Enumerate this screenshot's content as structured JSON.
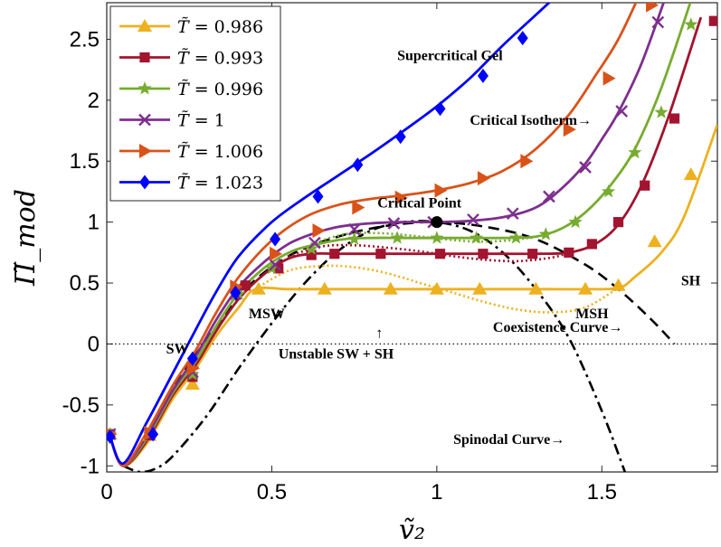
{
  "chart_data": {
    "type": "line",
    "xlabel": "ṽ₂",
    "ylabel": "Π̃_mod",
    "xlim": [
      0,
      1.85
    ],
    "ylim": [
      -1.05,
      2.8
    ],
    "xticks": [
      0,
      0.5,
      1,
      1.5
    ],
    "xtick_labels": [
      "0",
      "0.5",
      "1",
      "1.5"
    ],
    "yticks": [
      -1,
      -0.5,
      0,
      0.5,
      1,
      1.5,
      2,
      2.5
    ],
    "ytick_labels": [
      "-1",
      "-0.5",
      "0",
      "0.5",
      "1",
      "1.5",
      "2",
      "2.5"
    ],
    "grid": false,
    "legend_position": "top-left",
    "series": [
      {
        "name": "T̃ = 0.986",
        "legend_prefix": "T̃",
        "legend_value": "= 0.986",
        "color": "#EDB120",
        "marker": "triangle",
        "x": [
          0.01,
          0.05,
          0.12,
          0.2,
          0.27,
          0.33,
          0.4,
          0.45,
          0.55,
          0.65,
          0.75,
          0.85,
          0.95,
          1.05,
          1.15,
          1.25,
          1.35,
          1.45,
          1.55,
          1.6,
          1.68,
          1.75,
          1.85
        ],
        "y": [
          -0.76,
          -1.0,
          -0.82,
          -0.45,
          -0.2,
          0.06,
          0.3,
          0.45,
          0.45,
          0.45,
          0.45,
          0.45,
          0.45,
          0.45,
          0.45,
          0.45,
          0.45,
          0.45,
          0.46,
          0.55,
          0.75,
          1.05,
          1.8
        ],
        "markers_x": [
          0.01,
          0.13,
          0.26,
          0.46,
          0.66,
          0.86,
          1.0,
          1.13,
          1.3,
          1.45,
          1.55,
          1.66,
          1.77
        ],
        "markers_y": [
          -0.74,
          -0.75,
          -0.33,
          0.45,
          0.45,
          0.45,
          0.45,
          0.45,
          0.45,
          0.45,
          0.48,
          0.84,
          1.39
        ]
      },
      {
        "name": "T̃ = 0.993",
        "legend_prefix": "T̃",
        "legend_value": "= 0.993",
        "color": "#A2142F",
        "marker": "square",
        "x": [
          0.01,
          0.05,
          0.12,
          0.2,
          0.27,
          0.33,
          0.4,
          0.48,
          0.55,
          0.62,
          0.7,
          0.8,
          0.9,
          1.0,
          1.1,
          1.2,
          1.3,
          1.4,
          1.48,
          1.55,
          1.62,
          1.7,
          1.8
        ],
        "y": [
          -0.76,
          -1.0,
          -0.8,
          -0.42,
          -0.17,
          0.1,
          0.37,
          0.58,
          0.7,
          0.74,
          0.74,
          0.74,
          0.74,
          0.74,
          0.74,
          0.74,
          0.74,
          0.75,
          0.82,
          0.98,
          1.3,
          1.85,
          2.68
        ],
        "markers_x": [
          0.01,
          0.13,
          0.26,
          0.42,
          0.52,
          0.62,
          0.69,
          0.83,
          1.01,
          1.14,
          1.29,
          1.4,
          1.47,
          1.55,
          1.63,
          1.72,
          1.84
        ],
        "markers_y": [
          -0.74,
          -0.75,
          -0.27,
          0.48,
          0.62,
          0.73,
          0.74,
          0.74,
          0.74,
          0.74,
          0.74,
          0.75,
          0.82,
          1.0,
          1.3,
          1.85,
          2.65
        ]
      },
      {
        "name": "T̃ = 0.996",
        "legend_prefix": "T̃",
        "legend_value": "= 0.996",
        "color": "#77AC30",
        "marker": "star",
        "x": [
          0.01,
          0.05,
          0.12,
          0.2,
          0.27,
          0.33,
          0.4,
          0.48,
          0.56,
          0.64,
          0.72,
          0.8,
          0.9,
          1.0,
          1.1,
          1.2,
          1.3,
          1.38,
          1.45,
          1.52,
          1.6,
          1.68,
          1.78
        ],
        "y": [
          -0.76,
          -1.0,
          -0.78,
          -0.4,
          -0.14,
          0.14,
          0.42,
          0.63,
          0.76,
          0.82,
          0.86,
          0.87,
          0.87,
          0.87,
          0.87,
          0.87,
          0.88,
          0.95,
          1.08,
          1.28,
          1.6,
          2.1,
          2.9
        ],
        "markers_x": [
          0.01,
          0.13,
          0.26,
          0.4,
          0.5,
          0.62,
          0.75,
          0.88,
          1.0,
          1.12,
          1.24,
          1.33,
          1.42,
          1.52,
          1.6,
          1.68,
          1.77
        ],
        "markers_y": [
          -0.74,
          -0.74,
          -0.25,
          0.41,
          0.62,
          0.78,
          0.86,
          0.87,
          0.87,
          0.87,
          0.87,
          0.9,
          1.0,
          1.25,
          1.57,
          1.9,
          2.62
        ]
      },
      {
        "name": "T̃ = 1",
        "legend_prefix": "T̃",
        "legend_value": "= 1",
        "color": "#7E2F8E",
        "marker": "x",
        "x": [
          0.01,
          0.05,
          0.12,
          0.2,
          0.27,
          0.33,
          0.4,
          0.48,
          0.55,
          0.62,
          0.7,
          0.8,
          0.9,
          1.0,
          1.1,
          1.2,
          1.3,
          1.38,
          1.45,
          1.5,
          1.55,
          1.62,
          1.7
        ],
        "y": [
          -0.76,
          -1.0,
          -0.76,
          -0.38,
          -0.1,
          0.19,
          0.47,
          0.68,
          0.82,
          0.9,
          0.96,
          0.99,
          1.0,
          1.0,
          1.01,
          1.04,
          1.12,
          1.28,
          1.48,
          1.68,
          1.9,
          2.3,
          2.9
        ],
        "markers_x": [
          0.01,
          0.13,
          0.26,
          0.39,
          0.51,
          0.63,
          0.75,
          0.87,
          0.99,
          1.11,
          1.23,
          1.34,
          1.45,
          1.56,
          1.67
        ],
        "markers_y": [
          -0.74,
          -0.73,
          -0.23,
          0.41,
          0.65,
          0.83,
          0.94,
          0.99,
          1.0,
          1.02,
          1.07,
          1.21,
          1.45,
          1.91,
          2.64
        ]
      },
      {
        "name": "T̃ = 1.006",
        "legend_prefix": "T̃",
        "legend_value": "= 1.006",
        "color": "#D95319",
        "marker": "triangle-right",
        "x": [
          0.01,
          0.05,
          0.12,
          0.2,
          0.27,
          0.33,
          0.4,
          0.5,
          0.6,
          0.7,
          0.8,
          0.9,
          1.0,
          1.1,
          1.2,
          1.3,
          1.4,
          1.48,
          1.55,
          1.62
        ],
        "y": [
          -0.76,
          -1.0,
          -0.73,
          -0.34,
          -0.05,
          0.25,
          0.55,
          0.85,
          1.04,
          1.14,
          1.19,
          1.22,
          1.26,
          1.32,
          1.42,
          1.6,
          1.88,
          2.2,
          2.5,
          2.9
        ],
        "markers_x": [
          0.01,
          0.13,
          0.26,
          0.39,
          0.51,
          0.64,
          0.76,
          0.89,
          1.01,
          1.14,
          1.27,
          1.4,
          1.52,
          1.65
        ],
        "markers_y": [
          -0.74,
          -0.73,
          -0.2,
          0.47,
          0.74,
          0.93,
          1.12,
          1.2,
          1.26,
          1.36,
          1.5,
          1.76,
          2.18,
          2.78
        ]
      },
      {
        "name": "T̃ = 1.023",
        "legend_prefix": "T̃",
        "legend_value": "= 1.023",
        "color": "#0000FF",
        "marker": "diamond",
        "x": [
          0.01,
          0.05,
          0.12,
          0.2,
          0.27,
          0.33,
          0.4,
          0.5,
          0.6,
          0.7,
          0.8,
          0.9,
          1.0,
          1.1,
          1.2,
          1.3,
          1.38,
          1.44
        ],
        "y": [
          -0.76,
          -0.98,
          -0.65,
          -0.24,
          0.12,
          0.42,
          0.72,
          1.0,
          1.2,
          1.38,
          1.56,
          1.75,
          1.95,
          2.18,
          2.45,
          2.7,
          2.9,
          3.05
        ],
        "markers_x": [
          0.01,
          0.14,
          0.26,
          0.39,
          0.51,
          0.64,
          0.76,
          0.89,
          1.01,
          1.14,
          1.26
        ],
        "markers_y": [
          -0.76,
          -0.74,
          -0.12,
          0.42,
          0.86,
          1.21,
          1.47,
          1.7,
          1.93,
          2.2,
          2.51
        ]
      }
    ],
    "extra_curves": [
      {
        "name": "coexistence-curve",
        "style": "dashed",
        "color": "#000000",
        "x": [
          0.18,
          0.24,
          0.32,
          0.42,
          0.55,
          0.7,
          0.85,
          1.0,
          1.15,
          1.3,
          1.45,
          1.55,
          1.65,
          1.72
        ],
        "y": [
          -0.45,
          -0.2,
          0.1,
          0.45,
          0.72,
          0.88,
          0.97,
          1.0,
          0.96,
          0.86,
          0.65,
          0.45,
          0.2,
          0.0
        ]
      },
      {
        "name": "spinodal-curve",
        "style": "dashdot",
        "color": "#000000",
        "x": [
          0.05,
          0.1,
          0.15,
          0.2,
          0.3,
          0.4,
          0.5,
          0.6,
          0.7,
          0.8,
          0.9,
          1.0,
          1.1,
          1.2,
          1.3,
          1.4,
          1.5,
          1.57
        ],
        "y": [
          -1.0,
          -1.05,
          -1.02,
          -0.92,
          -0.6,
          -0.2,
          0.17,
          0.5,
          0.76,
          0.93,
          1.0,
          1.0,
          0.93,
          0.75,
          0.45,
          0.05,
          -0.55,
          -1.05
        ]
      },
      {
        "name": "metastable-dotted-0986",
        "style": "dotted",
        "color": "#EDB120",
        "x": [
          0.45,
          0.55,
          0.65,
          0.75,
          0.85,
          0.95,
          1.05,
          1.15,
          1.25,
          1.35,
          1.45,
          1.55
        ],
        "y": [
          0.45,
          0.6,
          0.64,
          0.63,
          0.58,
          0.5,
          0.42,
          0.34,
          0.28,
          0.26,
          0.3,
          0.46
        ]
      },
      {
        "name": "metastable-dotted-0993",
        "style": "dotted",
        "color": "#A2142F",
        "x": [
          0.55,
          0.65,
          0.75,
          0.85,
          0.95,
          1.05,
          1.15,
          1.25,
          1.35,
          1.4
        ],
        "y": [
          0.72,
          0.8,
          0.81,
          0.79,
          0.76,
          0.72,
          0.69,
          0.68,
          0.71,
          0.75
        ]
      },
      {
        "name": "metastable-dotted-0996",
        "style": "dotted",
        "color": "#77AC30",
        "x": [
          0.62,
          0.72,
          0.82,
          0.92,
          1.02,
          1.12,
          1.22,
          1.3
        ],
        "y": [
          0.82,
          0.9,
          0.91,
          0.89,
          0.86,
          0.84,
          0.85,
          0.88
        ]
      }
    ],
    "critical_point": {
      "x": 1.0,
      "y": 1.0,
      "label": "Critical Point"
    },
    "zero_line": {
      "y": 0,
      "style": "dotted"
    },
    "annotations": [
      {
        "text": "Supercritical Gel",
        "x": 0.88,
        "y": 2.33
      },
      {
        "text": "Critical Isotherm→",
        "x": 1.1,
        "y": 1.8
      },
      {
        "text": "Critical Point",
        "x": 0.82,
        "y": 1.12
      },
      {
        "text": "SH",
        "x": 1.74,
        "y": 0.48
      },
      {
        "text": "MSH",
        "x": 1.42,
        "y": 0.21
      },
      {
        "text": "Coexistence Curve→",
        "x": 1.17,
        "y": 0.1
      },
      {
        "text": "MSW",
        "x": 0.43,
        "y": 0.21
      },
      {
        "text": "SW",
        "x": 0.18,
        "y": -0.08
      },
      {
        "text": "↑",
        "x": 0.815,
        "y": 0.05
      },
      {
        "text": "Unstable SW + SH",
        "x": 0.52,
        "y": -0.12
      },
      {
        "text": "Spinodal Curve→",
        "x": 1.05,
        "y": -0.82
      }
    ]
  }
}
